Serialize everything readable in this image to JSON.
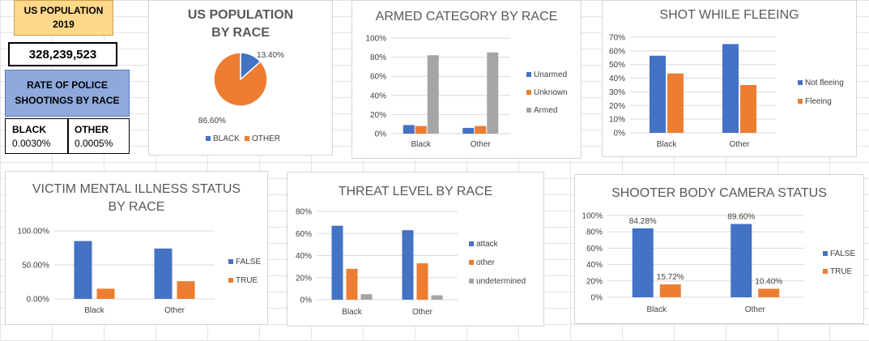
{
  "summary": {
    "us_population_title": "US POPULATION 2019",
    "us_population_value": "328,239,523",
    "rate_title": "RATE OF POLICE SHOOTINGS BY RACE",
    "black_label": "BLACK",
    "black_value": "0.0030%",
    "other_label": "OTHER",
    "other_value": "0.0005%"
  },
  "colors": {
    "blue": "#4472c4",
    "orange": "#ed7d31",
    "gray": "#a5a5a5"
  },
  "chart_data": [
    {
      "id": "pop",
      "type": "pie",
      "title": "US POPULATION BY RACE",
      "categories": [
        "BLACK",
        "OTHER"
      ],
      "values": [
        13.4,
        86.6
      ],
      "data_labels": [
        "13.40%",
        "86.60%"
      ],
      "legend": "bottom"
    },
    {
      "id": "armed",
      "type": "bar",
      "title": "ARMED CATEGORY BY RACE",
      "categories": [
        "Black",
        "Other"
      ],
      "series": [
        {
          "name": "Unarmed",
          "values": [
            9,
            6
          ]
        },
        {
          "name": "Unknown",
          "values": [
            8,
            8
          ]
        },
        {
          "name": "Armed",
          "values": [
            82,
            85
          ]
        }
      ],
      "ylim": [
        0,
        100
      ],
      "yticks": [
        "0%",
        "20%",
        "40%",
        "60%",
        "80%",
        "100%"
      ],
      "legend": "right"
    },
    {
      "id": "flee",
      "type": "bar",
      "title": "SHOT WHILE FLEEING",
      "categories": [
        "Black",
        "Other"
      ],
      "series": [
        {
          "name": "Not fleeing",
          "values": [
            56.5,
            65
          ]
        },
        {
          "name": "Fleeing",
          "values": [
            43.5,
            35
          ]
        }
      ],
      "ylim": [
        0,
        70
      ],
      "yticks": [
        "0%",
        "10%",
        "20%",
        "30%",
        "40%",
        "50%",
        "60%",
        "70%"
      ],
      "legend": "right"
    },
    {
      "id": "mental",
      "type": "bar",
      "title": "VICTIM MENTAL ILLNESS STATUS BY RACE",
      "title_lines": [
        "VICTIM MENTAL ILLNESS STATUS",
        "BY RACE"
      ],
      "categories": [
        "Black",
        "Other"
      ],
      "series": [
        {
          "name": "FALSE",
          "values": [
            85,
            74
          ]
        },
        {
          "name": "TRUE",
          "values": [
            15,
            26
          ]
        }
      ],
      "ylim": [
        0,
        100
      ],
      "yticks": [
        "0.00%",
        "50.00%",
        "100.00%"
      ],
      "legend": "right"
    },
    {
      "id": "threat",
      "type": "bar",
      "title": "THREAT LEVEL BY RACE",
      "categories": [
        "Black",
        "Other"
      ],
      "series": [
        {
          "name": "attack",
          "values": [
            67,
            63
          ]
        },
        {
          "name": "other",
          "values": [
            28,
            33
          ]
        },
        {
          "name": "undetermined",
          "values": [
            5,
            4
          ]
        }
      ],
      "ylim": [
        0,
        80
      ],
      "yticks": [
        "0%",
        "20%",
        "40%",
        "60%",
        "80%"
      ],
      "legend": "right"
    },
    {
      "id": "camera",
      "type": "bar",
      "title": "SHOOTER BODY CAMERA STATUS",
      "categories": [
        "Black",
        "Other"
      ],
      "series": [
        {
          "name": "FALSE",
          "values": [
            84.28,
            89.6
          ],
          "labels": [
            "84.28%",
            "89.60%"
          ]
        },
        {
          "name": "TRUE",
          "values": [
            15.72,
            10.4
          ],
          "labels": [
            "15.72%",
            "10.40%"
          ]
        }
      ],
      "ylim": [
        0,
        100
      ],
      "yticks": [
        "0%",
        "20%",
        "40%",
        "60%",
        "80%",
        "100%"
      ],
      "legend": "right"
    }
  ]
}
